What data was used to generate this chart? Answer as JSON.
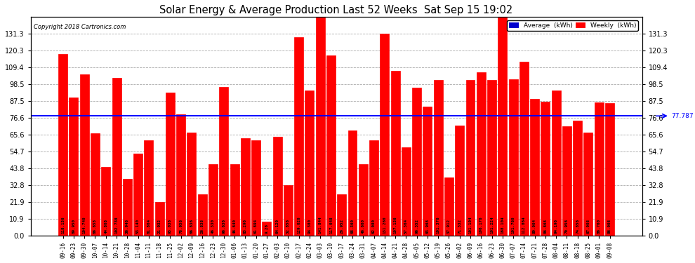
{
  "title": "Solar Energy & Average Production Last 52 Weeks  Sat Sep 15 19:02",
  "copyright": "Copyright 2018 Cartronics.com",
  "average_line": 77.787,
  "average_label": "77.787",
  "bar_color": "#FF0000",
  "avg_line_color": "#0000FF",
  "background_color": "#FFFFFF",
  "grid_color": "#AAAAAA",
  "yticks": [
    0.0,
    10.9,
    21.9,
    32.8,
    43.8,
    54.7,
    65.6,
    76.6,
    87.5,
    98.5,
    109.4,
    120.3,
    131.3
  ],
  "legend_avg_color": "#0000CD",
  "legend_weekly_color": "#FF0000",
  "categories": [
    "09-16",
    "09-23",
    "09-30",
    "10-07",
    "10-14",
    "10-21",
    "10-28",
    "11-04",
    "11-11",
    "11-18",
    "11-25",
    "12-02",
    "12-09",
    "12-16",
    "12-23",
    "12-30",
    "01-06",
    "01-13",
    "01-20",
    "01-27",
    "02-03",
    "02-10",
    "02-17",
    "02-24",
    "03-03",
    "03-10",
    "03-17",
    "03-24",
    "03-31",
    "04-07",
    "04-14",
    "04-21",
    "04-28",
    "05-05",
    "05-12",
    "05-19",
    "05-26",
    "06-02",
    "06-09",
    "06-16",
    "06-23",
    "06-30",
    "07-07",
    "07-14",
    "07-21",
    "07-28",
    "08-04",
    "08-11",
    "08-18",
    "08-25",
    "09-01",
    "09-08"
  ],
  "values": [
    118.156,
    89.95,
    104.74,
    66.658,
    44.808,
    102.738,
    36.946,
    53.14,
    61.864,
    21.932,
    93.036,
    78.956,
    66.836,
    26.838,
    46.33,
    96.636,
    46.64,
    63.296,
    61.894,
    9.26,
    64.12,
    32.856,
    129.02,
    94.38,
    141.844,
    117.048,
    26.952,
    68.36,
    46.66,
    62.08,
    131.26,
    107.136,
    57.364,
    96.352,
    83.968,
    101.376,
    37.912,
    71.332,
    101.104,
    106.176,
    101.224,
    168.104,
    101.76,
    112.864,
    89.004,
    86.868,
    94.196,
    70.956,
    74.856,
    67.008,
    86.76,
    86.008
  ],
  "bar_labels": [
    "118.156",
    "89.950",
    "104.740",
    "66.658",
    "44.808",
    "102.738",
    "36.946",
    "53.140",
    "61.864",
    "21.932",
    "93.036",
    "78.956",
    "66.836",
    "26.838",
    "46.330",
    "96.636",
    "46.640",
    "63.296",
    "61.894",
    "9.26",
    "64.120",
    "32.856",
    "129.020",
    "94.380",
    "141.844",
    "117.048",
    "26.952",
    "68.360",
    "46.660",
    "62.080",
    "131.260",
    "107.136",
    "57.364",
    "96.352",
    "83.968",
    "101.376",
    "37.912",
    "71.332",
    "101.104",
    "106.176",
    "101.224",
    "168.104",
    "101.760",
    "112.864",
    "89.004",
    "86.868",
    "94.196",
    "70.956",
    "74.856",
    "67.008",
    "86.760",
    "86.008"
  ]
}
